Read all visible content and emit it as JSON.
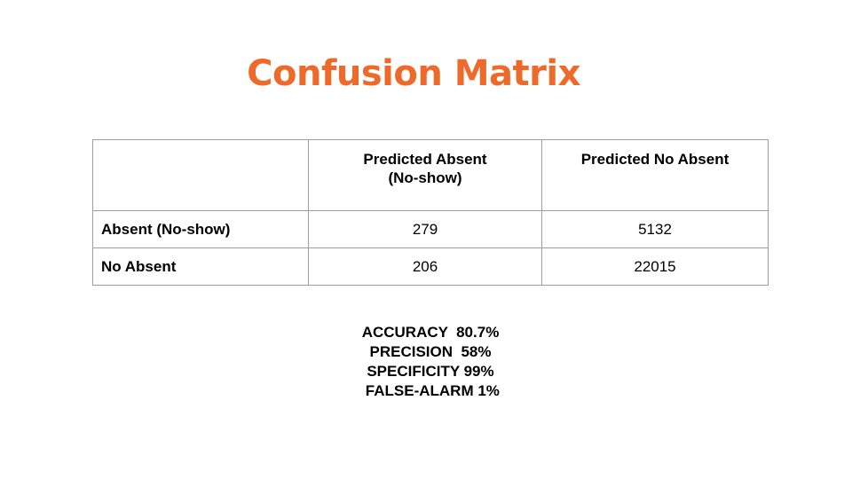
{
  "slide": {
    "title": "Confusion Matrix"
  },
  "matrix": {
    "corner": "",
    "columns": [
      "Predicted Absent\n(No-show)",
      "Predicted No Absent"
    ],
    "rows": [
      {
        "label": "Absent (No-show)",
        "values": [
          "279",
          "5132"
        ]
      },
      {
        "label": "No Absent",
        "values": [
          "206",
          "22015"
        ]
      }
    ]
  },
  "metrics": [
    "ACCURACY  80.7%",
    "PRECISION  58%",
    "SPECIFICITY 99%",
    " FALSE-ALARM 1%"
  ],
  "colors": {
    "title": "#ee6a2b",
    "grid": "#9e9e9e"
  }
}
